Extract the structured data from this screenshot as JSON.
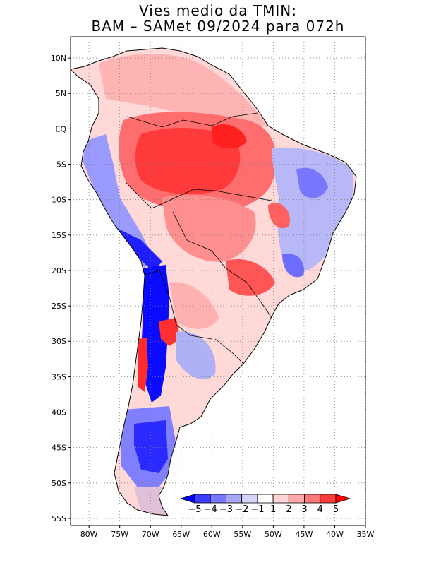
{
  "title": {
    "line1": "Vies medio da TMIN:",
    "line2": "BAM  –  SAMet 09/2024   para 072h"
  },
  "map": {
    "region": "South America",
    "lat_labels": [
      "10N",
      "5N",
      "EQ",
      "5S",
      "10S",
      "15S",
      "20S",
      "25S",
      "30S",
      "35S",
      "40S",
      "45S",
      "50S",
      "55S"
    ],
    "lon_labels": [
      "80W",
      "75W",
      "70W",
      "65W",
      "60W",
      "55W",
      "50W",
      "45W",
      "40W",
      "35W"
    ],
    "lat_values": [
      10,
      5,
      0,
      -5,
      -10,
      -15,
      -20,
      -25,
      -30,
      -35,
      -40,
      -45,
      -50,
      -55
    ],
    "lon_values": [
      -80,
      -75,
      -70,
      -65,
      -60,
      -55,
      -50,
      -45,
      -40,
      -35
    ],
    "lon_range": [
      -83,
      -35
    ],
    "lat_range": [
      -56,
      13
    ],
    "gridlines": "dotted"
  },
  "colorbar": {
    "labels": [
      "−5",
      "−4",
      "−3",
      "−2",
      "−1",
      "1",
      "2",
      "3",
      "4",
      "5"
    ],
    "colors": [
      "#0000ff",
      "#3c3cff",
      "#7878ff",
      "#a8a8f5",
      "#d4d4fa",
      "#ffffff",
      "#ffd4d4",
      "#ffa8a8",
      "#ff7878",
      "#ff3c3c",
      "#ff0000"
    ]
  },
  "colors": {
    "strong_warm": "#ff3030",
    "warm": "#ff8c8c",
    "light_warm": "#ffd2d2",
    "strong_cold": "#1010ff",
    "cold": "#8a8aff",
    "light_cold": "#d2d2fa"
  }
}
